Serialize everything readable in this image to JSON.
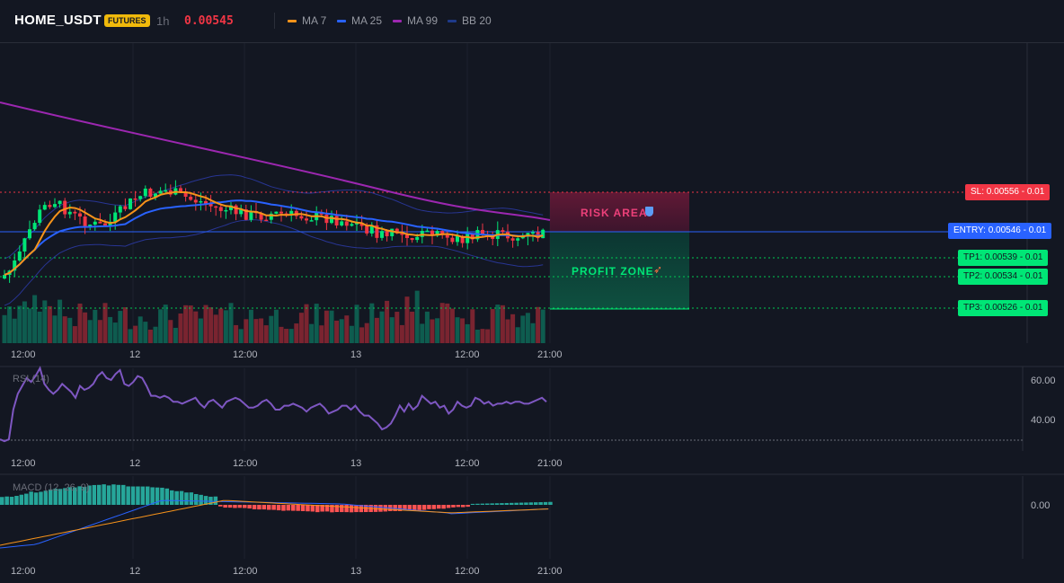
{
  "header": {
    "symbol": "HOME_USDT",
    "badge": "FUTURES",
    "timeframe": "1h",
    "price": "0.00545",
    "indicators": [
      {
        "label": "MA 7",
        "color": "#f7931a"
      },
      {
        "label": "MA 25",
        "color": "#2962ff"
      },
      {
        "label": "MA 99",
        "color": "#9c27b0"
      },
      {
        "label": "BB 20",
        "color": "#1e3a8a"
      }
    ]
  },
  "time_labels": [
    "12:00",
    "12",
    "12:00",
    "13",
    "12:00",
    "21:00"
  ],
  "trade": {
    "sl": {
      "label": "SL: 0.00556",
      "pct": "- 0.01",
      "color": "#f23645"
    },
    "entry": {
      "label": "ENTRY: 0.00546",
      "pct": "- 0.01",
      "color": "#2962ff"
    },
    "tp1": {
      "label": "TP1: 0.00539",
      "pct": "- 0.01",
      "color": "#00e676"
    },
    "tp2": {
      "label": "TP2: 0.00534",
      "pct": "- 0.01",
      "color": "#00e676"
    },
    "tp3": {
      "label": "TP3: 0.00526",
      "pct": "- 0.01",
      "color": "#00e676"
    },
    "risk_label": "RISK AREA",
    "profit_label": "PROFIT ZONE"
  },
  "rsi": {
    "label": "RSI (14)",
    "axis": [
      "60.00",
      "40.00"
    ],
    "values": [
      30,
      29,
      30,
      45,
      53,
      57,
      61,
      59,
      62,
      66,
      58,
      55,
      53,
      55,
      58,
      56,
      54,
      51,
      57,
      55,
      56,
      58,
      62,
      64,
      61,
      60,
      63,
      65,
      58,
      57,
      59,
      62,
      61,
      57,
      52,
      52,
      51,
      52,
      51,
      49,
      49,
      48,
      49,
      50,
      51,
      48,
      46,
      49,
      50,
      48,
      46,
      49,
      50,
      51,
      50,
      48,
      46,
      46,
      47,
      49,
      50,
      48,
      45,
      45,
      47,
      47,
      48,
      47,
      46,
      44,
      46,
      47,
      48,
      46,
      43,
      44,
      45,
      47,
      47,
      45,
      47,
      44,
      42,
      42,
      40,
      38,
      35,
      36,
      38,
      42,
      47,
      44,
      48,
      45,
      47,
      52,
      50,
      48,
      49,
      46,
      47,
      43,
      45,
      49,
      47,
      46,
      47,
      51,
      50,
      48,
      49,
      47,
      48,
      48,
      49,
      48,
      49,
      49,
      48,
      48,
      49,
      50,
      51,
      49
    ]
  },
  "macd": {
    "label": "MACD (12, 26, 9)",
    "axis": [
      "0.00"
    ]
  },
  "chart_data": {
    "type": "line",
    "title": "HOME_USDT 1h",
    "price_levels": {
      "sl": 0.00556,
      "entry": 0.00546,
      "tp1": 0.00539,
      "tp2": 0.00534,
      "tp3": 0.00526
    },
    "rsi_ticks": [
      60,
      40
    ],
    "macd_ticks": [
      0
    ]
  }
}
